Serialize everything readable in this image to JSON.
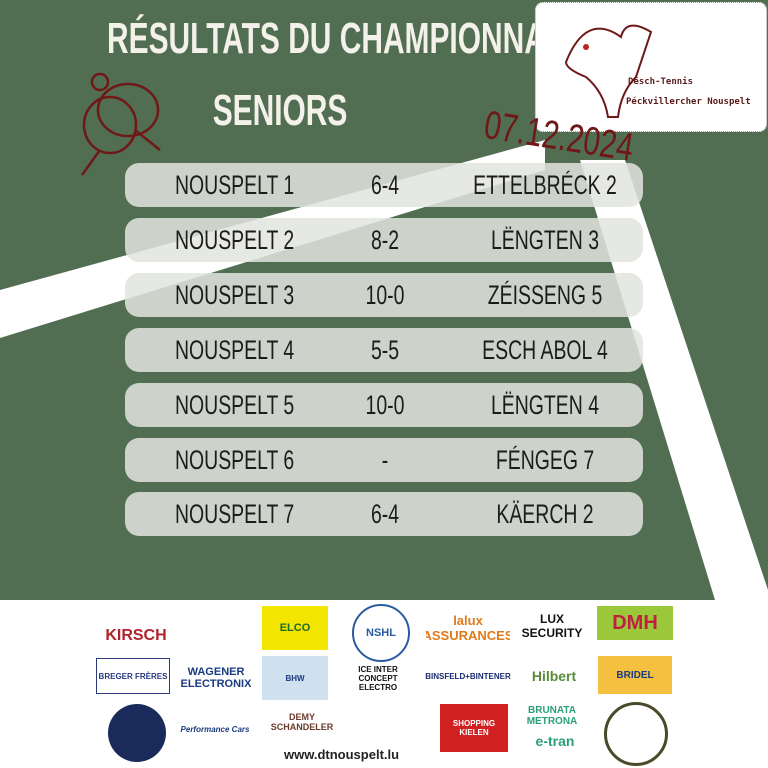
{
  "header": {
    "title_line1": "RÉSULTATS DU CHAMPIONNAT",
    "title_line2": "SENIORS",
    "date": "07.12.2024"
  },
  "logo": {
    "line1": "Dësch-Tennis",
    "line2": "Péckvillercher Nouspelt"
  },
  "results": [
    {
      "home": "NOUSPELT 1",
      "score": "6-4",
      "away": "ETTELBRÉCK 2"
    },
    {
      "home": "NOUSPELT 2",
      "score": "8-2",
      "away": "LËNGTEN 3"
    },
    {
      "home": "NOUSPELT 3",
      "score": "10-0",
      "away": "ZÉISSENG 5"
    },
    {
      "home": "NOUSPELT 4",
      "score": "5-5",
      "away": "ESCH ABOL 4"
    },
    {
      "home": "NOUSPELT 5",
      "score": "10-0",
      "away": "LËNGTEN 4"
    },
    {
      "home": "NOUSPELT 6",
      "score": "-",
      "away": "FÉNGEG 7"
    },
    {
      "home": "NOUSPELT 7",
      "score": "6-4",
      "away": "KÄERCH 2"
    }
  ],
  "sponsors": [
    "KIRSCH",
    "ELCO",
    "NSHL",
    "lalux ASSURANCES",
    "LUX SECURITY",
    "DMH",
    "BREGER FRÈRES",
    "WAGENER ELECTRONIX",
    "BHW",
    "ICE INTER CONCEPT ELECTRO",
    "BINSFELD+BINTENER",
    "Hilbert",
    "BRIDEL",
    "Performance Cars",
    "DEMY SCHANDELER",
    "SHOPPING KIELEN",
    "BRUNATA METRONA",
    "e-tran"
  ],
  "footer": {
    "url": "www.dtnouspelt.lu"
  },
  "colors": {
    "background": "#526e52",
    "accent": "#6e1818",
    "row": "#e2e4e0"
  }
}
